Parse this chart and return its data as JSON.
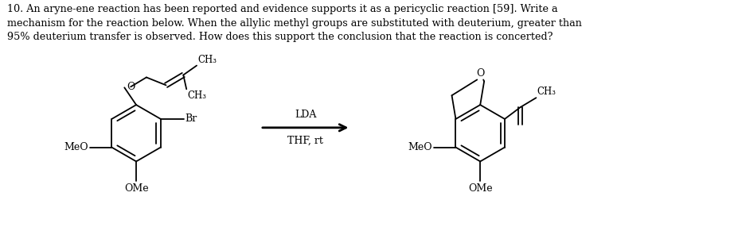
{
  "title_text": "10. An aryne-ene reaction has been reported and evidence supports it as a pericyclic reaction [59]. Write a\nmechanism for the reaction below. When the allylic methyl groups are substituted with deuterium, greater than\n95% deuterium transfer is observed. How does this support the conclusion that the reaction is concerted?",
  "bg_color": "#ffffff",
  "line_color": "#000000",
  "text_color": "#000000",
  "label_color": "#000000",
  "reagent_above": "LDA",
  "reagent_below": "THF, rt",
  "br_label": "Br",
  "meo_label_left1": "MeO",
  "ome_label_bottom1": "OMe",
  "meo_label_left2": "MeO",
  "ome_label_bottom2": "OMe",
  "ch3_label1": "CH₃",
  "ch3_label2": "CH₃",
  "ch3_label3": "CH₃",
  "o_label1": "O",
  "o_label2": "O"
}
